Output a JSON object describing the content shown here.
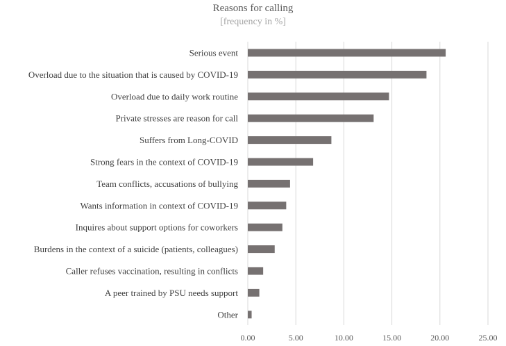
{
  "chart_data": {
    "type": "bar",
    "orientation": "horizontal",
    "title": "Reasons for calling",
    "subtitle": "[frequency in %]",
    "categories": [
      "Serious event",
      "Overload due to the situation that is caused by COVID-19",
      "Overload due to daily work routine",
      "Private stresses are reason for call",
      "Suffers from Long-COVID",
      "Strong fears in the context of COVID-19",
      "Team conflicts, accusations of bullying",
      "Wants information in context of COVID-19",
      "Inquires about support options for coworkers",
      "Burdens in the context of a suicide (patients, colleagues)",
      "Caller refuses vaccination, resulting in conflicts",
      "A peer trained by PSU needs support",
      "Other"
    ],
    "values": [
      20.6,
      18.6,
      14.7,
      13.1,
      8.7,
      6.8,
      4.4,
      4.0,
      3.6,
      2.8,
      1.6,
      1.2,
      0.4
    ],
    "xlim": [
      0,
      25
    ],
    "xticks": [
      "0.00",
      "5.00",
      "10.00",
      "15.00",
      "20.00",
      "25.00"
    ],
    "grid": true,
    "bar_color": "#767171",
    "grid_color": "#d9d9d9"
  }
}
